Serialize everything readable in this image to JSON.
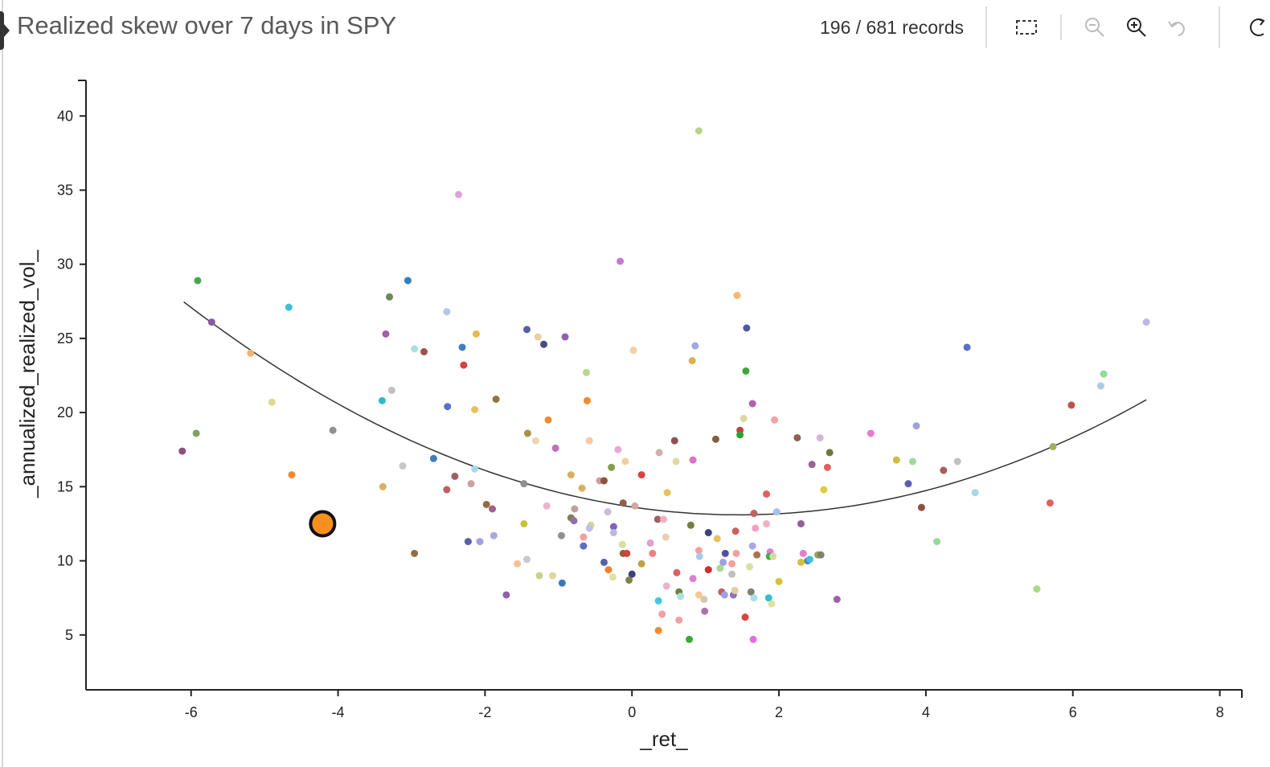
{
  "header": {
    "title": "Realized skew over 7 days in SPY",
    "records": "196 / 681 records"
  },
  "toolbar": {
    "icons": [
      "rect-select-icon",
      "zoom-out-icon",
      "zoom-in-icon",
      "undo-icon",
      "refresh-icon"
    ]
  },
  "chart_data": {
    "type": "scatter",
    "title": "Realized skew over 7 days in SPY",
    "xlabel": "_ret_",
    "ylabel": "_annualized_realized_vol_",
    "xlim": [
      -7.43,
      8.3
    ],
    "ylim": [
      1.3,
      42.4
    ],
    "xticks": [
      -6,
      -4,
      -2,
      0,
      2,
      4,
      6,
      8
    ],
    "yticks": [
      5,
      10,
      15,
      20,
      25,
      30,
      35,
      40
    ],
    "grid": false,
    "trendline": {
      "type": "quadratic",
      "vertex_x": 1.45,
      "vertex_y": 13.1,
      "a": 0.252,
      "x_range": [
        -6.1,
        7.0
      ]
    },
    "highlighted_point": {
      "x": -4.21,
      "y": 12.5,
      "color": "#f7901e"
    },
    "points": [
      [
        0.91,
        39.0,
        "#b5d58a"
      ],
      [
        -2.36,
        34.7,
        "#e0a0d8"
      ],
      [
        -0.16,
        30.2,
        "#c47bd0"
      ],
      [
        -5.91,
        28.9,
        "#4aa84a"
      ],
      [
        -3.05,
        28.9,
        "#2f7fbf"
      ],
      [
        -4.67,
        27.1,
        "#3fbfd8"
      ],
      [
        -3.3,
        27.8,
        "#6b8a5a"
      ],
      [
        1.43,
        27.9,
        "#f5b870"
      ],
      [
        -5.72,
        26.1,
        "#8a5aa8"
      ],
      [
        -2.52,
        26.8,
        "#b0c8e8"
      ],
      [
        7.0,
        26.1,
        "#c0b8e0"
      ],
      [
        -3.35,
        25.3,
        "#a060a8"
      ],
      [
        -1.43,
        25.6,
        "#5a5ea8"
      ],
      [
        1.56,
        25.7,
        "#4e5a9a"
      ],
      [
        -2.12,
        25.3,
        "#e8b850"
      ],
      [
        -1.28,
        25.1,
        "#e8d0a0"
      ],
      [
        -0.91,
        25.1,
        "#9060b0"
      ],
      [
        -5.19,
        24.0,
        "#f8b070"
      ],
      [
        -2.96,
        24.3,
        "#a8e0e0"
      ],
      [
        -2.83,
        24.1,
        "#a05050"
      ],
      [
        -2.31,
        24.4,
        "#3f7fc0"
      ],
      [
        -1.2,
        24.6,
        "#4a4a80"
      ],
      [
        0.02,
        24.2,
        "#f0d0a8"
      ],
      [
        0.86,
        24.5,
        "#a0a8e0"
      ],
      [
        0.82,
        23.5,
        "#e0b050"
      ],
      [
        4.56,
        24.4,
        "#5a70c0"
      ],
      [
        -2.29,
        23.2,
        "#d84040"
      ],
      [
        -0.62,
        22.7,
        "#b8d890"
      ],
      [
        1.55,
        22.8,
        "#3aa83a"
      ],
      [
        6.42,
        22.6,
        "#98d898"
      ],
      [
        6.38,
        21.8,
        "#b0c8e8"
      ],
      [
        -4.9,
        20.7,
        "#d8d890"
      ],
      [
        -3.27,
        21.5,
        "#c0c0c0"
      ],
      [
        -3.4,
        20.8,
        "#30b8d0"
      ],
      [
        -1.85,
        20.9,
        "#8a7a3a"
      ],
      [
        -0.61,
        20.8,
        "#f08a30"
      ],
      [
        -2.51,
        20.4,
        "#5a70c8"
      ],
      [
        -2.14,
        20.2,
        "#e8c060"
      ],
      [
        1.64,
        20.6,
        "#b060b0"
      ],
      [
        5.98,
        20.5,
        "#c05050"
      ],
      [
        -1.14,
        19.5,
        "#f08a30"
      ],
      [
        1.52,
        19.6,
        "#d8d8a0"
      ],
      [
        1.94,
        19.5,
        "#f8a0a0"
      ],
      [
        -5.93,
        18.6,
        "#80a060"
      ],
      [
        -6.12,
        17.4,
        "#8a5080"
      ],
      [
        -4.07,
        18.8,
        "#909090"
      ],
      [
        1.47,
        18.8,
        "#c04040"
      ],
      [
        1.47,
        18.5,
        "#30a030"
      ],
      [
        -1.42,
        18.6,
        "#a89050"
      ],
      [
        -1.31,
        18.1,
        "#e8d8b0"
      ],
      [
        -0.58,
        18.1,
        "#f8c8a0"
      ],
      [
        0.58,
        18.1,
        "#905050"
      ],
      [
        1.14,
        18.2,
        "#806040"
      ],
      [
        2.25,
        18.3,
        "#906050"
      ],
      [
        2.56,
        18.3,
        "#d0b8d8"
      ],
      [
        3.25,
        18.6,
        "#e878d0"
      ],
      [
        3.87,
        19.1,
        "#a0a0e0"
      ],
      [
        -1.04,
        17.6,
        "#c070c0"
      ],
      [
        -0.19,
        17.5,
        "#e8a8d8"
      ],
      [
        2.69,
        17.3,
        "#6a7a3a"
      ],
      [
        -2.7,
        16.9,
        "#3f7fc0"
      ],
      [
        0.37,
        17.3,
        "#d0b0b0"
      ],
      [
        0.83,
        16.8,
        "#e070c8"
      ],
      [
        0.6,
        16.7,
        "#e0d8a0"
      ],
      [
        -0.09,
        16.7,
        "#f0d0a0"
      ],
      [
        3.6,
        16.8,
        "#c8c040"
      ],
      [
        3.82,
        16.7,
        "#a0d8a0"
      ],
      [
        4.43,
        16.7,
        "#c0c0c0"
      ],
      [
        2.45,
        16.5,
        "#a06090"
      ],
      [
        2.66,
        16.3,
        "#e06060"
      ],
      [
        -3.12,
        16.4,
        "#c8c8c8"
      ],
      [
        -2.14,
        16.2,
        "#a8d8e8"
      ],
      [
        -0.28,
        16.3,
        "#80a050"
      ],
      [
        5.73,
        17.7,
        "#a0b060"
      ],
      [
        4.24,
        16.1,
        "#a06060"
      ],
      [
        -4.63,
        15.8,
        "#f08a30"
      ],
      [
        -2.41,
        15.7,
        "#a06060"
      ],
      [
        -0.83,
        15.8,
        "#d8b060"
      ],
      [
        -0.44,
        15.4,
        "#d0a0a0"
      ],
      [
        -0.38,
        15.4,
        "#905040"
      ],
      [
        0.13,
        15.8,
        "#e04040"
      ],
      [
        -1.47,
        15.2,
        "#909090"
      ],
      [
        -2.19,
        15.2,
        "#d0a0a0"
      ],
      [
        3.76,
        15.2,
        "#5a5eb0"
      ],
      [
        -3.39,
        15.0,
        "#d8b060"
      ],
      [
        -2.52,
        14.8,
        "#c06060"
      ],
      [
        -0.68,
        14.9,
        "#d8b060"
      ],
      [
        0.48,
        14.6,
        "#e8c060"
      ],
      [
        1.83,
        14.5,
        "#e06060"
      ],
      [
        2.61,
        14.8,
        "#d8d040"
      ],
      [
        4.67,
        14.6,
        "#a8d8e8"
      ],
      [
        5.69,
        13.9,
        "#e06060"
      ],
      [
        -1.98,
        13.8,
        "#907040"
      ],
      [
        -1.9,
        13.5,
        "#a06090"
      ],
      [
        -1.16,
        13.7,
        "#f0b0d0"
      ],
      [
        -0.78,
        13.5,
        "#c0a0a0"
      ],
      [
        -0.12,
        13.9,
        "#906050"
      ],
      [
        0.04,
        13.7,
        "#d0a8a8"
      ],
      [
        -0.33,
        13.3,
        "#d0b8d8"
      ],
      [
        1.66,
        13.2,
        "#c06060"
      ],
      [
        1.97,
        13.3,
        "#a8c0e8"
      ],
      [
        3.94,
        13.6,
        "#905040"
      ],
      [
        -1.47,
        12.5,
        "#c8c040"
      ],
      [
        -0.83,
        12.9,
        "#808050"
      ],
      [
        -0.79,
        12.7,
        "#9070b0"
      ],
      [
        -0.56,
        12.4,
        "#d0d890"
      ],
      [
        -0.58,
        12.2,
        "#c0c0e8"
      ],
      [
        -0.25,
        12.3,
        "#8060c0"
      ],
      [
        -0.25,
        11.9,
        "#c0b8d8"
      ],
      [
        0.35,
        12.8,
        "#a06060"
      ],
      [
        0.43,
        12.8,
        "#f0b0c0"
      ],
      [
        0.8,
        12.4,
        "#708040"
      ],
      [
        1.41,
        12.0,
        "#d06060"
      ],
      [
        1.68,
        12.2,
        "#f0a0c0"
      ],
      [
        1.83,
        12.5,
        "#f0b0c0"
      ],
      [
        2.3,
        12.5,
        "#906090"
      ],
      [
        -2.23,
        11.3,
        "#5a5ea8"
      ],
      [
        -2.07,
        11.3,
        "#a0a0e0"
      ],
      [
        -1.88,
        11.7,
        "#a8a8e0"
      ],
      [
        -0.96,
        11.7,
        "#909090"
      ],
      [
        -0.66,
        11.6,
        "#f0a0a0"
      ],
      [
        1.04,
        11.9,
        "#404080"
      ],
      [
        1.16,
        11.5,
        "#e8c060"
      ],
      [
        0.46,
        11.6,
        "#e8d0b0"
      ],
      [
        0.25,
        11.2,
        "#e0a0d0"
      ],
      [
        4.15,
        11.3,
        "#98d898"
      ],
      [
        -0.66,
        11.0,
        "#5a70c8"
      ],
      [
        -0.13,
        11.1,
        "#d8e0a0"
      ],
      [
        1.64,
        11.0,
        "#a8a8e8"
      ],
      [
        -2.96,
        10.5,
        "#907040"
      ],
      [
        -1.43,
        10.1,
        "#c8c8c8"
      ],
      [
        -0.12,
        10.5,
        "#906040"
      ],
      [
        -0.07,
        10.5,
        "#d04040"
      ],
      [
        0.28,
        10.5,
        "#f08080"
      ],
      [
        0.91,
        10.7,
        "#f0a0a0"
      ],
      [
        1.27,
        10.5,
        "#5050a0"
      ],
      [
        1.42,
        10.5,
        "#f0a0a0"
      ],
      [
        1.7,
        10.4,
        "#b07050"
      ],
      [
        1.88,
        10.6,
        "#e080d0"
      ],
      [
        1.87,
        10.3,
        "#40b040"
      ],
      [
        2.33,
        10.5,
        "#e080c8"
      ],
      [
        2.39,
        10.0,
        "#5080c8"
      ],
      [
        2.53,
        10.4,
        "#a0a060"
      ],
      [
        2.57,
        10.4,
        "#808070"
      ],
      [
        2.42,
        10.1,
        "#40c0d8"
      ],
      [
        2.3,
        9.9,
        "#d8c030"
      ],
      [
        -1.56,
        9.8,
        "#f8c090"
      ],
      [
        -0.38,
        9.9,
        "#5a5ea8"
      ],
      [
        0.13,
        9.8,
        "#c0a040"
      ],
      [
        0.92,
        10.3,
        "#a8c8f0"
      ],
      [
        1.24,
        9.9,
        "#a0a0e0"
      ],
      [
        1.36,
        9.8,
        "#f0a0a0"
      ],
      [
        1.6,
        9.6,
        "#d8e0a0"
      ],
      [
        1.92,
        10.3,
        "#d8d8a0"
      ],
      [
        -0.32,
        9.4,
        "#f08030"
      ],
      [
        0.0,
        9.1,
        "#404080"
      ],
      [
        0.61,
        9.2,
        "#e06060"
      ],
      [
        1.04,
        9.4,
        "#d03030"
      ],
      [
        1.2,
        9.5,
        "#a8d890"
      ],
      [
        1.36,
        9.1,
        "#c0c0c0"
      ],
      [
        -1.26,
        9.0,
        "#c8d090"
      ],
      [
        -1.08,
        9.0,
        "#d8d8a0"
      ],
      [
        -0.26,
        8.9,
        "#e0e0a0"
      ],
      [
        -0.04,
        8.7,
        "#808050"
      ],
      [
        2.0,
        8.6,
        "#d8c040"
      ],
      [
        -0.95,
        8.5,
        "#3a7ab8"
      ],
      [
        0.83,
        8.8,
        "#e080d0"
      ],
      [
        0.47,
        8.3,
        "#f0b0d0"
      ],
      [
        -1.71,
        7.7,
        "#9060b0"
      ],
      [
        0.64,
        7.9,
        "#708040"
      ],
      [
        0.91,
        7.7,
        "#f8c890"
      ],
      [
        0.98,
        7.4,
        "#d0c8b0"
      ],
      [
        1.22,
        7.9,
        "#c06060"
      ],
      [
        1.26,
        7.7,
        "#a0a0e0"
      ],
      [
        1.38,
        7.7,
        "#9070c0"
      ],
      [
        1.4,
        8.0,
        "#e0d0a0"
      ],
      [
        1.62,
        7.9,
        "#808070"
      ],
      [
        1.66,
        7.5,
        "#a8e0e8"
      ],
      [
        1.86,
        7.5,
        "#30c0d0"
      ],
      [
        1.9,
        7.1,
        "#e0e0a0"
      ],
      [
        0.36,
        7.3,
        "#40c8e0"
      ],
      [
        0.66,
        7.6,
        "#a8e0e0"
      ],
      [
        2.79,
        7.4,
        "#a060a8"
      ],
      [
        5.51,
        8.1,
        "#a8d880"
      ],
      [
        0.99,
        6.6,
        "#b070b0"
      ],
      [
        0.41,
        6.4,
        "#f0a0a0"
      ],
      [
        0.64,
        6.0,
        "#f0a0a0"
      ],
      [
        1.54,
        6.2,
        "#e04040"
      ],
      [
        0.36,
        5.3,
        "#f08a30"
      ],
      [
        0.78,
        4.7,
        "#3aa83a"
      ],
      [
        1.65,
        4.7,
        "#e070d8"
      ]
    ]
  }
}
